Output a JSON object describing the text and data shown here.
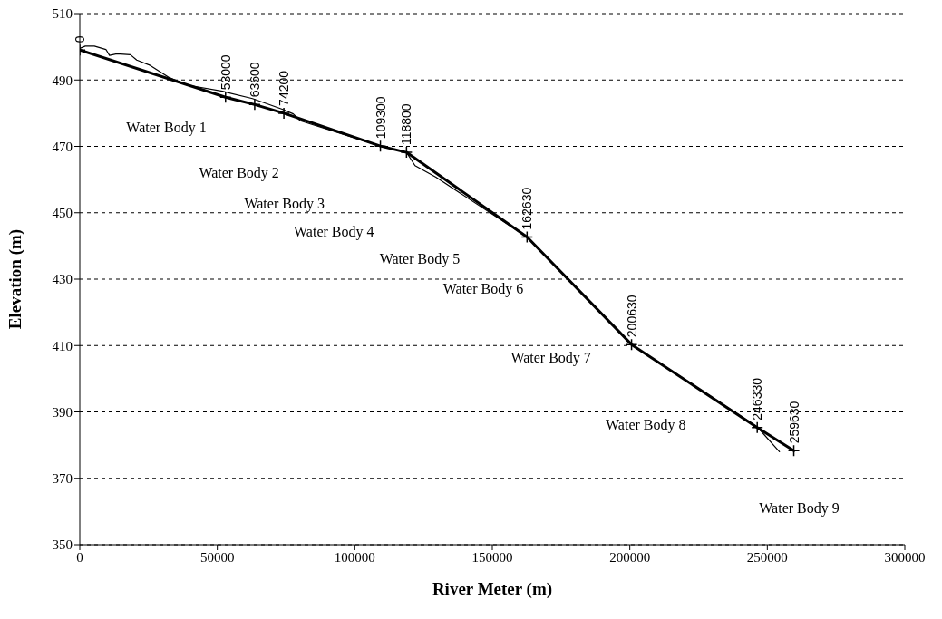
{
  "chart_data": {
    "type": "line",
    "xlabel": "River Meter (m)",
    "ylabel": "Elevation (m)",
    "xlim": [
      0,
      300000
    ],
    "xticks": [
      0,
      50000,
      100000,
      150000,
      200000,
      250000,
      300000
    ],
    "ylim": [
      350,
      510
    ],
    "yticks": [
      350,
      370,
      390,
      410,
      430,
      450,
      470,
      490,
      510
    ],
    "grid": "y",
    "line_style": "solid",
    "series": [
      {
        "color": "#000000",
        "marker": "none",
        "x": [
          0,
          2000,
          5300,
          9500,
          10800,
          13500,
          18400,
          20700,
          25600,
          32200,
          38800,
          51900,
          62800,
          73600,
          77600,
          80200,
          109300,
          118800,
          121900,
          129500,
          162630,
          200630,
          246330,
          254400
        ],
        "values": [
          499.5,
          500.2,
          500.2,
          499.2,
          497.4,
          497.9,
          497.6,
          496,
          494.4,
          490.9,
          488.5,
          486.6,
          484.4,
          481.2,
          479.8,
          477.7,
          470.1,
          468.2,
          464.2,
          460.7,
          442.7,
          410.3,
          385.5,
          378
        ]
      },
      {
        "color": "#000000",
        "marker": "cross",
        "x": [
          0,
          53000,
          63600,
          74200,
          109300,
          118800,
          162630,
          200630,
          246330,
          259630
        ],
        "values": [
          499,
          484.8,
          482.6,
          480,
          470.1,
          468.2,
          442.7,
          410.3,
          385.3,
          378.3
        ]
      }
    ],
    "annotations": [
      {
        "text": "0",
        "x": 0,
        "y": 499
      },
      {
        "text": "53000",
        "x": 53000,
        "y": 484.8
      },
      {
        "text": "63600",
        "x": 63600,
        "y": 482.6
      },
      {
        "text": "74200",
        "x": 74200,
        "y": 480
      },
      {
        "text": "109300",
        "x": 109300,
        "y": 470.1
      },
      {
        "text": "118800",
        "x": 118800,
        "y": 468.2
      },
      {
        "text": "162630",
        "x": 162630,
        "y": 442.7
      },
      {
        "text": "200630",
        "x": 200630,
        "y": 410.3
      },
      {
        "text": "246330",
        "x": 246330,
        "y": 385.3
      },
      {
        "text": "259630",
        "x": 259630,
        "y": 378.3
      },
      "Water Body 1",
      "Water Body 2",
      "Water Body 3",
      "Water Body 4",
      "Water Body 5",
      "Water Body 6",
      "Water Body 7",
      "Water Body 8",
      "Water Body 9"
    ]
  }
}
